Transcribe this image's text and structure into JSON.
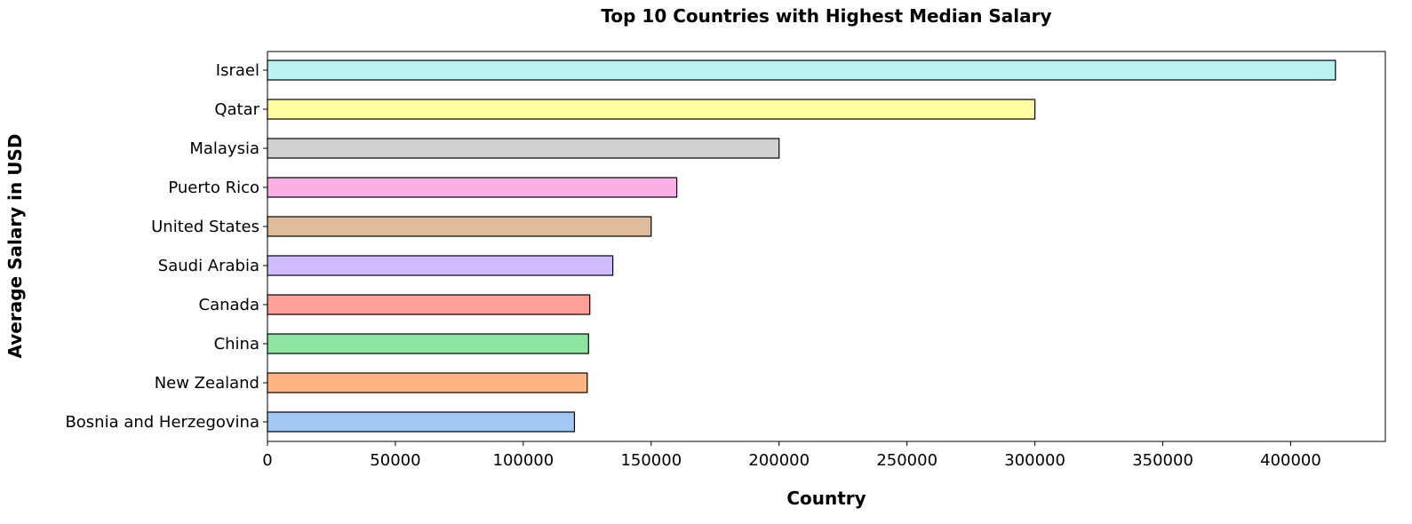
{
  "chart_data": {
    "type": "bar",
    "orientation": "horizontal",
    "title": "Top 10 Countries with Highest Median Salary",
    "xlabel": "Country",
    "ylabel": "Average Salary in USD",
    "xlim": [
      0,
      437000
    ],
    "xticks": [
      0,
      50000,
      100000,
      150000,
      200000,
      250000,
      300000,
      350000,
      400000
    ],
    "xtick_labels": [
      "0",
      "50000",
      "100000",
      "150000",
      "200000",
      "250000",
      "300000",
      "350000",
      "400000"
    ],
    "grid": false,
    "legend": "none",
    "categories": [
      "Israel",
      "Qatar",
      "Malaysia",
      "Puerto Rico",
      "United States",
      "Saudi Arabia",
      "Canada",
      "China",
      "New Zealand",
      "Bosnia and Herzegovina"
    ],
    "values": [
      417500,
      300000,
      200000,
      160000,
      150000,
      135000,
      126000,
      125500,
      125000,
      120000
    ],
    "colors": [
      "#b9f2f0",
      "#fffea3",
      "#d0d0d0",
      "#fab0e4",
      "#debb9b",
      "#d0bbff",
      "#ff9f9b",
      "#8de5a1",
      "#ffb482",
      "#a1c9f4"
    ],
    "edge_color": "#000000"
  }
}
